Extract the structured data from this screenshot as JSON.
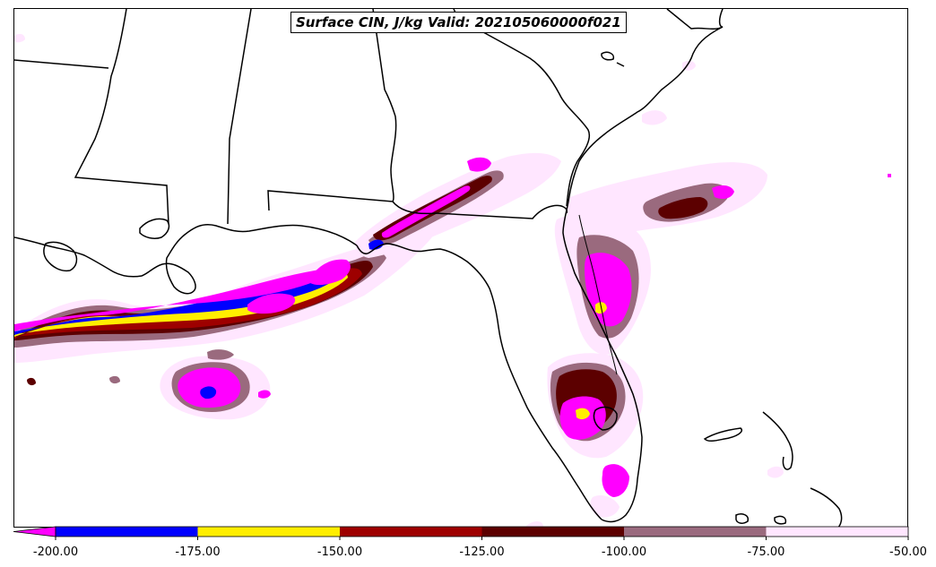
{
  "title": "Surface CIN, J/kg Valid: 202105060000f021",
  "colorbar": {
    "ticks": [
      "-200.00",
      "-175.00",
      "-150.00",
      "-125.00",
      "-100.00",
      "-75.00",
      "-50.00"
    ],
    "tick_values": [
      -200,
      -175,
      -150,
      -125,
      -100,
      -75,
      -50
    ],
    "bins": [
      {
        "from": -200,
        "to": -175,
        "color": "#0000ff"
      },
      {
        "from": -175,
        "to": -150,
        "color": "#ffee00"
      },
      {
        "from": -150,
        "to": -125,
        "color": "#9e0000"
      },
      {
        "from": -125,
        "to": -100,
        "color": "#5c0000"
      },
      {
        "from": -100,
        "to": -75,
        "color": "#9a6a7e"
      },
      {
        "from": -75,
        "to": -50,
        "color": "#ffe6ff"
      }
    ],
    "under_color": "#ff00ff",
    "range": [
      -200,
      -50
    ],
    "extend": "min"
  }
}
